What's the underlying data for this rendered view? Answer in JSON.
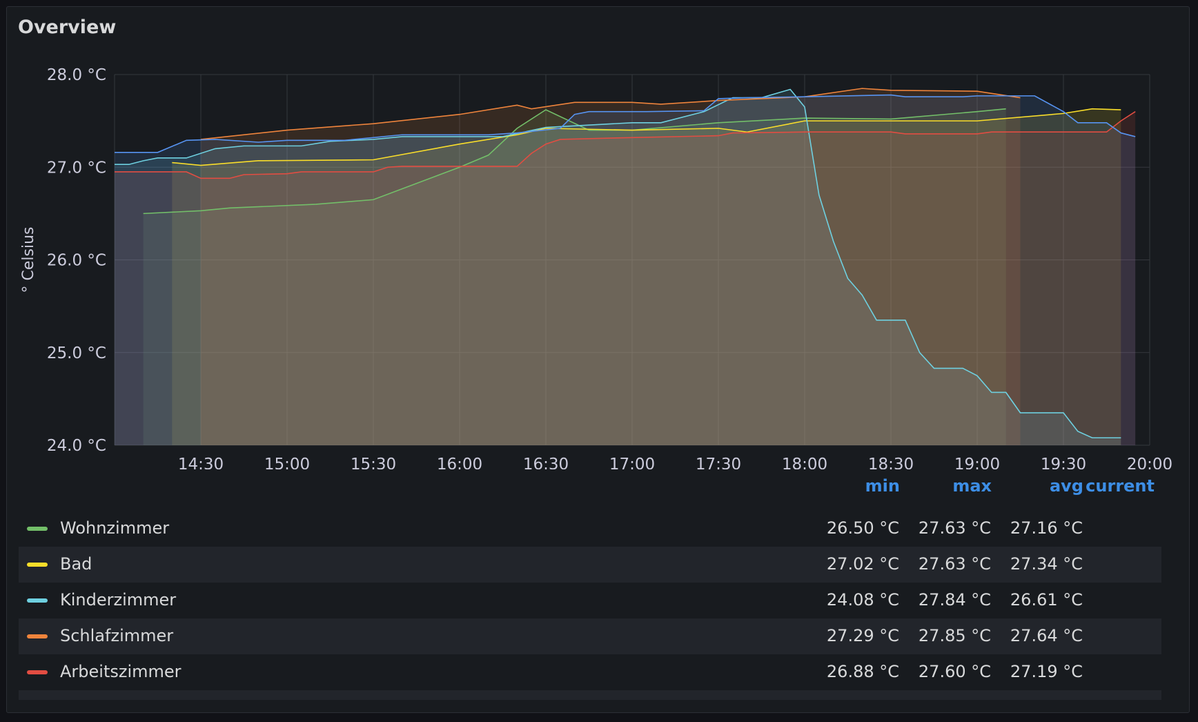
{
  "panel": {
    "title": "Overview"
  },
  "legend": {
    "columns": [
      "min",
      "max",
      "avg",
      "current"
    ],
    "rows": [
      {
        "name": "Wohnzimmer",
        "color": "#73bf69",
        "min": "26.50 °C",
        "max": "27.63 °C",
        "avg": "27.16 °C",
        "current": ""
      },
      {
        "name": "Bad",
        "color": "#fade2a",
        "min": "27.02 °C",
        "max": "27.63 °C",
        "avg": "27.34 °C",
        "current": ""
      },
      {
        "name": "Kinderzimmer",
        "color": "#6ed0e0",
        "min": "24.08 °C",
        "max": "27.84 °C",
        "avg": "26.61 °C",
        "current": ""
      },
      {
        "name": "Schlafzimmer",
        "color": "#ef843c",
        "min": "27.29 °C",
        "max": "27.85 °C",
        "avg": "27.64 °C",
        "current": ""
      },
      {
        "name": "Arbeitszimmer",
        "color": "#e24d42",
        "min": "26.88 °C",
        "max": "27.60 °C",
        "avg": "27.19 °C",
        "current": ""
      }
    ]
  },
  "chart_data": {
    "type": "area",
    "ylabel": "° Celsius",
    "ylim": [
      24.0,
      28.0
    ],
    "y_ticks": [
      "24.0 °C",
      "25.0 °C",
      "26.0 °C",
      "27.0 °C",
      "28.0 °C"
    ],
    "xlim": [
      "14:00",
      "20:00"
    ],
    "x_ticks": [
      "14:30",
      "15:00",
      "15:30",
      "16:00",
      "16:30",
      "17:00",
      "17:30",
      "18:00",
      "18:30",
      "19:00",
      "19:30",
      "20:00"
    ],
    "grid": true,
    "series": [
      {
        "name": "Wohnzimmer",
        "color": "#73bf69",
        "points": [
          [
            "14:10",
            26.5
          ],
          [
            "14:30",
            26.53
          ],
          [
            "14:40",
            26.56
          ],
          [
            "15:10",
            26.6
          ],
          [
            "15:30",
            26.65
          ],
          [
            "16:00",
            27.0
          ],
          [
            "16:10",
            27.13
          ],
          [
            "16:20",
            27.42
          ],
          [
            "16:30",
            27.62
          ],
          [
            "16:45",
            27.4
          ],
          [
            "17:00",
            27.4
          ],
          [
            "17:30",
            27.48
          ],
          [
            "18:00",
            27.53
          ],
          [
            "18:30",
            27.52
          ],
          [
            "19:00",
            27.6
          ],
          [
            "19:10",
            27.63
          ]
        ]
      },
      {
        "name": "Bad",
        "color": "#fade2a",
        "points": [
          [
            "14:20",
            27.05
          ],
          [
            "14:30",
            27.02
          ],
          [
            "14:50",
            27.07
          ],
          [
            "15:30",
            27.08
          ],
          [
            "16:00",
            27.25
          ],
          [
            "16:20",
            27.35
          ],
          [
            "16:30",
            27.42
          ],
          [
            "17:00",
            27.4
          ],
          [
            "17:30",
            27.42
          ],
          [
            "17:40",
            27.38
          ],
          [
            "18:00",
            27.5
          ],
          [
            "18:30",
            27.5
          ],
          [
            "19:00",
            27.5
          ],
          [
            "19:30",
            27.58
          ],
          [
            "19:40",
            27.63
          ],
          [
            "19:50",
            27.62
          ]
        ]
      },
      {
        "name": "Kinderzimmer",
        "color": "#6ed0e0",
        "points": [
          [
            "14:00",
            27.03
          ],
          [
            "14:05",
            27.03
          ],
          [
            "14:10",
            27.07
          ],
          [
            "14:15",
            27.1
          ],
          [
            "14:25",
            27.1
          ],
          [
            "14:35",
            27.2
          ],
          [
            "14:45",
            27.23
          ],
          [
            "15:05",
            27.23
          ],
          [
            "15:15",
            27.28
          ],
          [
            "15:30",
            27.3
          ],
          [
            "15:40",
            27.33
          ],
          [
            "16:15",
            27.33
          ],
          [
            "16:30",
            27.43
          ],
          [
            "17:00",
            27.48
          ],
          [
            "17:10",
            27.48
          ],
          [
            "17:25",
            27.6
          ],
          [
            "17:35",
            27.75
          ],
          [
            "17:45",
            27.75
          ],
          [
            "17:55",
            27.84
          ],
          [
            "18:00",
            27.65
          ],
          [
            "18:05",
            26.7
          ],
          [
            "18:10",
            26.2
          ],
          [
            "18:15",
            25.8
          ],
          [
            "18:20",
            25.62
          ],
          [
            "18:25",
            25.35
          ],
          [
            "18:35",
            25.35
          ],
          [
            "18:40",
            25.0
          ],
          [
            "18:45",
            24.83
          ],
          [
            "18:55",
            24.83
          ],
          [
            "19:00",
            24.75
          ],
          [
            "19:05",
            24.57
          ],
          [
            "19:10",
            24.57
          ],
          [
            "19:15",
            24.35
          ],
          [
            "19:30",
            24.35
          ],
          [
            "19:35",
            24.15
          ],
          [
            "19:40",
            24.08
          ],
          [
            "19:50",
            24.08
          ]
        ]
      },
      {
        "name": "Schlafzimmer",
        "color": "#ef843c",
        "points": [
          [
            "14:30",
            27.3
          ],
          [
            "15:00",
            27.4
          ],
          [
            "15:30",
            27.47
          ],
          [
            "16:00",
            27.57
          ],
          [
            "16:20",
            27.67
          ],
          [
            "16:25",
            27.63
          ],
          [
            "16:40",
            27.7
          ],
          [
            "17:00",
            27.7
          ],
          [
            "17:10",
            27.68
          ],
          [
            "17:30",
            27.72
          ],
          [
            "18:00",
            27.76
          ],
          [
            "18:20",
            27.85
          ],
          [
            "18:30",
            27.83
          ],
          [
            "19:00",
            27.82
          ],
          [
            "19:15",
            27.75
          ]
        ]
      },
      {
        "name": "Arbeitszimmer",
        "color": "#e24d42",
        "points": [
          [
            "14:00",
            26.95
          ],
          [
            "14:25",
            26.95
          ],
          [
            "14:30",
            26.88
          ],
          [
            "14:40",
            26.88
          ],
          [
            "14:45",
            26.92
          ],
          [
            "15:00",
            26.93
          ],
          [
            "15:05",
            26.95
          ],
          [
            "15:30",
            26.95
          ],
          [
            "15:35",
            27.0
          ],
          [
            "15:40",
            27.01
          ],
          [
            "16:20",
            27.01
          ],
          [
            "16:25",
            27.15
          ],
          [
            "16:30",
            27.25
          ],
          [
            "16:35",
            27.3
          ],
          [
            "17:00",
            27.32
          ],
          [
            "17:30",
            27.34
          ],
          [
            "17:35",
            27.37
          ],
          [
            "18:00",
            27.38
          ],
          [
            "18:30",
            27.38
          ],
          [
            "18:35",
            27.36
          ],
          [
            "19:00",
            27.36
          ],
          [
            "19:05",
            27.38
          ],
          [
            "19:45",
            27.38
          ],
          [
            "19:50",
            27.5
          ],
          [
            "19:55",
            27.6
          ]
        ]
      },
      {
        "name": "",
        "color": "#5794f2",
        "points": [
          [
            "14:00",
            27.16
          ],
          [
            "14:15",
            27.16
          ],
          [
            "14:25",
            27.29
          ],
          [
            "14:35",
            27.3
          ],
          [
            "14:50",
            27.27
          ],
          [
            "15:00",
            27.29
          ],
          [
            "15:20",
            27.29
          ],
          [
            "15:30",
            27.32
          ],
          [
            "15:40",
            27.35
          ],
          [
            "16:10",
            27.35
          ],
          [
            "16:20",
            27.37
          ],
          [
            "16:35",
            27.42
          ],
          [
            "16:40",
            27.57
          ],
          [
            "16:45",
            27.6
          ],
          [
            "17:05",
            27.6
          ],
          [
            "17:25",
            27.61
          ],
          [
            "17:30",
            27.74
          ],
          [
            "17:40",
            27.75
          ],
          [
            "18:00",
            27.76
          ],
          [
            "18:30",
            27.78
          ],
          [
            "18:35",
            27.76
          ],
          [
            "18:55",
            27.76
          ],
          [
            "19:00",
            27.77
          ],
          [
            "19:20",
            27.77
          ],
          [
            "19:30",
            27.6
          ],
          [
            "19:35",
            27.48
          ],
          [
            "19:45",
            27.48
          ],
          [
            "19:50",
            27.37
          ],
          [
            "19:55",
            27.33
          ]
        ]
      }
    ]
  }
}
